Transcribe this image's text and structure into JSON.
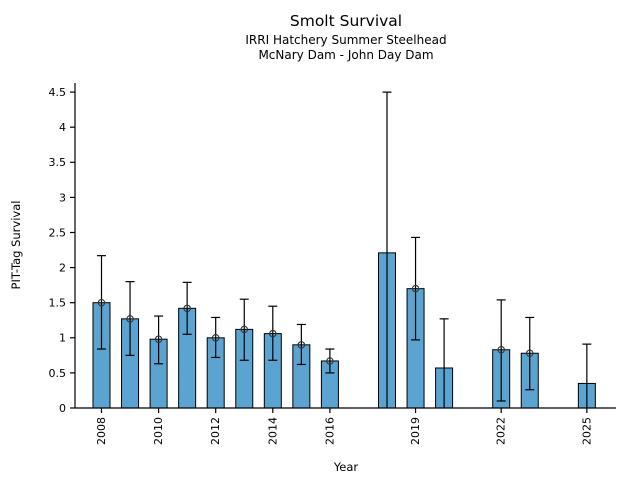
{
  "chart_data": {
    "type": "bar",
    "title": "Smolt Survival",
    "subtitle_line1": "IRRI Hatchery Summer Steelhead",
    "subtitle_line2": "McNary Dam - John Day Dam",
    "xlabel": "Year",
    "ylabel": "PIT-Tag Survival",
    "legend": "none",
    "grid": false,
    "xlim": [
      2007.07,
      2026.0
    ],
    "ylim": [
      0,
      4.63
    ],
    "xtick_years": [
      2008,
      2010,
      2012,
      2014,
      2016,
      2019,
      2022,
      2025
    ],
    "ytick_values": [
      0,
      0.5,
      1,
      1.5,
      2,
      2.5,
      3,
      3.5,
      4,
      4.5
    ],
    "ytick_labels": [
      "0",
      "0.5",
      "1",
      "1.5",
      "2",
      "2.5",
      "3",
      "3.5",
      "4",
      "4.5"
    ],
    "points": [
      {
        "year": 2008,
        "value": 1.5,
        "ci_low": 0.84,
        "ci_high": 2.17,
        "marker": true
      },
      {
        "year": 2009,
        "value": 1.27,
        "ci_low": 0.75,
        "ci_high": 1.8,
        "marker": true
      },
      {
        "year": 2010,
        "value": 0.98,
        "ci_low": 0.63,
        "ci_high": 1.31,
        "marker": true
      },
      {
        "year": 2011,
        "value": 1.42,
        "ci_low": 1.05,
        "ci_high": 1.79,
        "marker": true
      },
      {
        "year": 2012,
        "value": 1.0,
        "ci_low": 0.72,
        "ci_high": 1.29,
        "marker": true
      },
      {
        "year": 2013,
        "value": 1.12,
        "ci_low": 0.68,
        "ci_high": 1.55,
        "marker": true
      },
      {
        "year": 2014,
        "value": 1.06,
        "ci_low": 0.68,
        "ci_high": 1.45,
        "marker": true
      },
      {
        "year": 2015,
        "value": 0.9,
        "ci_low": 0.62,
        "ci_high": 1.19,
        "marker": true
      },
      {
        "year": 2016,
        "value": 0.67,
        "ci_low": 0.5,
        "ci_high": 0.84,
        "marker": true
      },
      {
        "year": 2018,
        "value": 2.21,
        "ci_low": 0.0,
        "ci_high": 4.5,
        "marker": false
      },
      {
        "year": 2019,
        "value": 1.7,
        "ci_low": 0.97,
        "ci_high": 2.43,
        "marker": true
      },
      {
        "year": 2020,
        "value": 0.57,
        "ci_low": 0.0,
        "ci_high": 1.27,
        "marker": false
      },
      {
        "year": 2022,
        "value": 0.83,
        "ci_low": 0.1,
        "ci_high": 1.54,
        "marker": true
      },
      {
        "year": 2023,
        "value": 0.78,
        "ci_low": 0.26,
        "ci_high": 1.29,
        "marker": true
      },
      {
        "year": 2025,
        "value": 0.35,
        "ci_low": 0.0,
        "ci_high": 0.91,
        "marker": false
      }
    ],
    "colors": {
      "bar_fill": "#5BA3D0",
      "bar_edge": "#000000",
      "error_bar": "#000000",
      "marker_stroke": "#333333",
      "axis": "#000000",
      "background": "#ffffff"
    }
  }
}
